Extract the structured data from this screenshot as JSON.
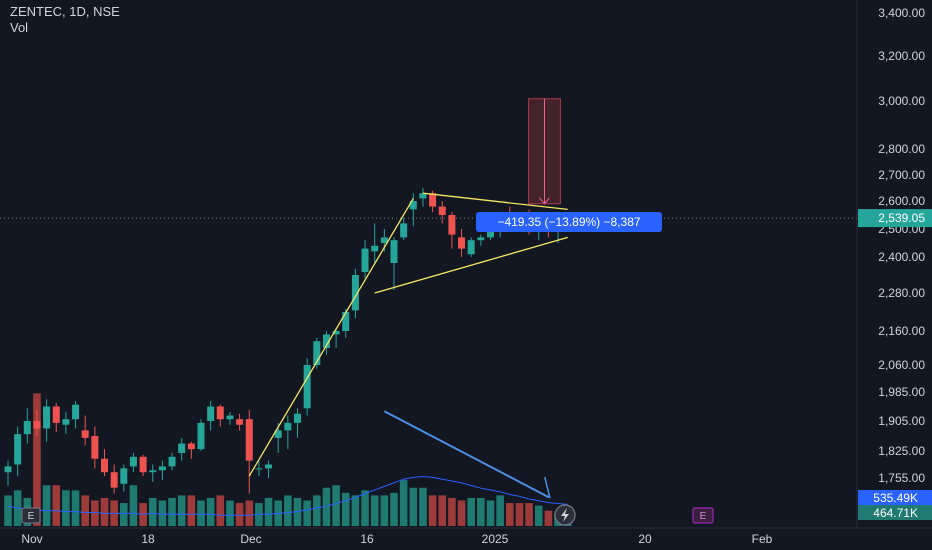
{
  "header": {
    "title": "ZENTEC, 1D, NSE",
    "indicator": "Vol"
  },
  "price_axis": {
    "ticks": [
      "3,400.00",
      "3,200.00",
      "3,000.00",
      "2,800.00",
      "2,700.00",
      "2,600.00",
      "2,500.00",
      "2,400.00",
      "2,280.00",
      "2,160.00",
      "2,060.00",
      "1,985.00",
      "1,905.00",
      "1,825.00",
      "1,755.00"
    ],
    "last_price": "2,539.05",
    "vol_labels": [
      "535.49K",
      "464.71K"
    ]
  },
  "time_axis": {
    "ticks": [
      "Nov",
      "18",
      "Dec",
      "16",
      "2025",
      "20",
      "Feb"
    ]
  },
  "measure_label": "−419.35 (−13.89%) −8,387",
  "event_markers": [
    "E",
    "E"
  ],
  "colors": {
    "up": "#26a69a",
    "down": "#ef5350",
    "bg": "#131722",
    "pattern": "#f5e663",
    "ma": "#2962ff",
    "measure": "#2962ff"
  },
  "chart_data": {
    "type": "candlestick",
    "symbol": "ZENTEC",
    "interval": "1D",
    "exchange": "NSE",
    "ohlc": [
      [
        1770,
        1800,
        1735,
        1785
      ],
      [
        1790,
        1890,
        1760,
        1870
      ],
      [
        1870,
        1940,
        1845,
        1905
      ],
      [
        1905,
        1935,
        1865,
        1885
      ],
      [
        1885,
        1965,
        1850,
        1945
      ],
      [
        1945,
        1955,
        1875,
        1900
      ],
      [
        1895,
        1930,
        1870,
        1910
      ],
      [
        1910,
        1960,
        1885,
        1950
      ],
      [
        1880,
        1920,
        1840,
        1860
      ],
      [
        1865,
        1890,
        1780,
        1805
      ],
      [
        1805,
        1830,
        1760,
        1770
      ],
      [
        1770,
        1790,
        1715,
        1730
      ],
      [
        1740,
        1790,
        1720,
        1780
      ],
      [
        1785,
        1820,
        1770,
        1810
      ],
      [
        1810,
        1815,
        1760,
        1770
      ],
      [
        1770,
        1790,
        1745,
        1775
      ],
      [
        1775,
        1800,
        1750,
        1785
      ],
      [
        1785,
        1820,
        1775,
        1810
      ],
      [
        1820,
        1860,
        1800,
        1845
      ],
      [
        1845,
        1850,
        1805,
        1830
      ],
      [
        1830,
        1910,
        1825,
        1900
      ],
      [
        1905,
        1960,
        1880,
        1945
      ],
      [
        1945,
        1950,
        1890,
        1910
      ],
      [
        1910,
        1930,
        1895,
        1920
      ],
      [
        1910,
        1925,
        1880,
        1895
      ],
      [
        1910,
        1935,
        1715,
        1800
      ],
      [
        1780,
        1800,
        1760,
        1780
      ],
      [
        1780,
        1800,
        1755,
        1790
      ],
      [
        1860,
        1900,
        1820,
        1880
      ],
      [
        1880,
        1920,
        1830,
        1900
      ],
      [
        1900,
        1940,
        1860,
        1925
      ],
      [
        1940,
        2080,
        1920,
        2060
      ],
      [
        2060,
        2140,
        2050,
        2130
      ],
      [
        2110,
        2160,
        2090,
        2150
      ],
      [
        2150,
        2170,
        2110,
        2160
      ],
      [
        2160,
        2230,
        2140,
        2220
      ],
      [
        2225,
        2360,
        2200,
        2340
      ],
      [
        2350,
        2460,
        2330,
        2430
      ],
      [
        2420,
        2520,
        2380,
        2440
      ],
      [
        2450,
        2500,
        2420,
        2470
      ],
      [
        2380,
        2470,
        2290,
        2460
      ],
      [
        2470,
        2540,
        2460,
        2520
      ],
      [
        2570,
        2630,
        2510,
        2600
      ],
      [
        2610,
        2650,
        2580,
        2630
      ],
      [
        2630,
        2640,
        2560,
        2580
      ],
      [
        2580,
        2600,
        2520,
        2550
      ],
      [
        2550,
        2560,
        2430,
        2480
      ],
      [
        2470,
        2500,
        2400,
        2430
      ],
      [
        2410,
        2470,
        2400,
        2460
      ],
      [
        2460,
        2480,
        2440,
        2470
      ],
      [
        2470,
        2510,
        2460,
        2500
      ],
      [
        2500,
        2530,
        2470,
        2510
      ],
      [
        2520,
        2580,
        2490,
        2510
      ],
      [
        2530,
        2560,
        2490,
        2510
      ],
      [
        2550,
        2570,
        2480,
        2500
      ],
      [
        2490,
        2530,
        2460,
        2510
      ],
      [
        2520,
        2540,
        2470,
        2500
      ],
      [
        2500,
        2520,
        2450,
        2500
      ],
      [
        2505,
        2560,
        2490,
        2539
      ]
    ],
    "volume": [
      12,
      14,
      11,
      52,
      16,
      16,
      14,
      14,
      12,
      10,
      11,
      10,
      9,
      16,
      9,
      11,
      10,
      11,
      12,
      12,
      10,
      11,
      12,
      10,
      9,
      10,
      9,
      11,
      10,
      12,
      11,
      10,
      12,
      15,
      16,
      13,
      12,
      14,
      12,
      12,
      13,
      18,
      15,
      15,
      12,
      12,
      11,
      10,
      11,
      11,
      10,
      12,
      9,
      9,
      9,
      8,
      6,
      5,
      4
    ],
    "volume_ma": [
      22,
      20,
      19,
      18,
      17,
      17,
      16,
      16,
      15,
      15,
      14,
      14,
      14,
      14,
      13,
      14,
      13,
      13,
      13,
      13,
      13,
      13,
      12,
      12,
      12,
      12,
      13,
      13,
      14,
      15,
      16,
      18,
      20,
      22,
      25,
      28,
      32,
      36,
      40,
      44,
      48,
      52,
      54,
      55,
      54,
      52,
      50,
      48,
      45,
      42,
      40,
      38,
      35,
      33,
      30,
      28,
      26,
      25,
      24
    ],
    "volume_ma_value": "535.49K",
    "volume_value": "464.71K",
    "y_range": [
      1690,
      3420
    ],
    "annotations": {
      "pennant_upper": [
        [
          43,
          2630
        ],
        [
          58,
          2570
        ]
      ],
      "pennant_lower": [
        [
          38,
          2280
        ],
        [
          58,
          2470
        ]
      ],
      "pole": [
        [
          25,
          1760
        ],
        [
          42,
          2610
        ]
      ],
      "measure_box": {
        "from": [
          54,
          3010
        ],
        "to": [
          56,
          2590
        ],
        "label": "−419.35 (−13.89%) −8,387"
      },
      "volume_trend": [
        [
          39,
          45
        ],
        [
          55,
          16
        ]
      ]
    }
  }
}
